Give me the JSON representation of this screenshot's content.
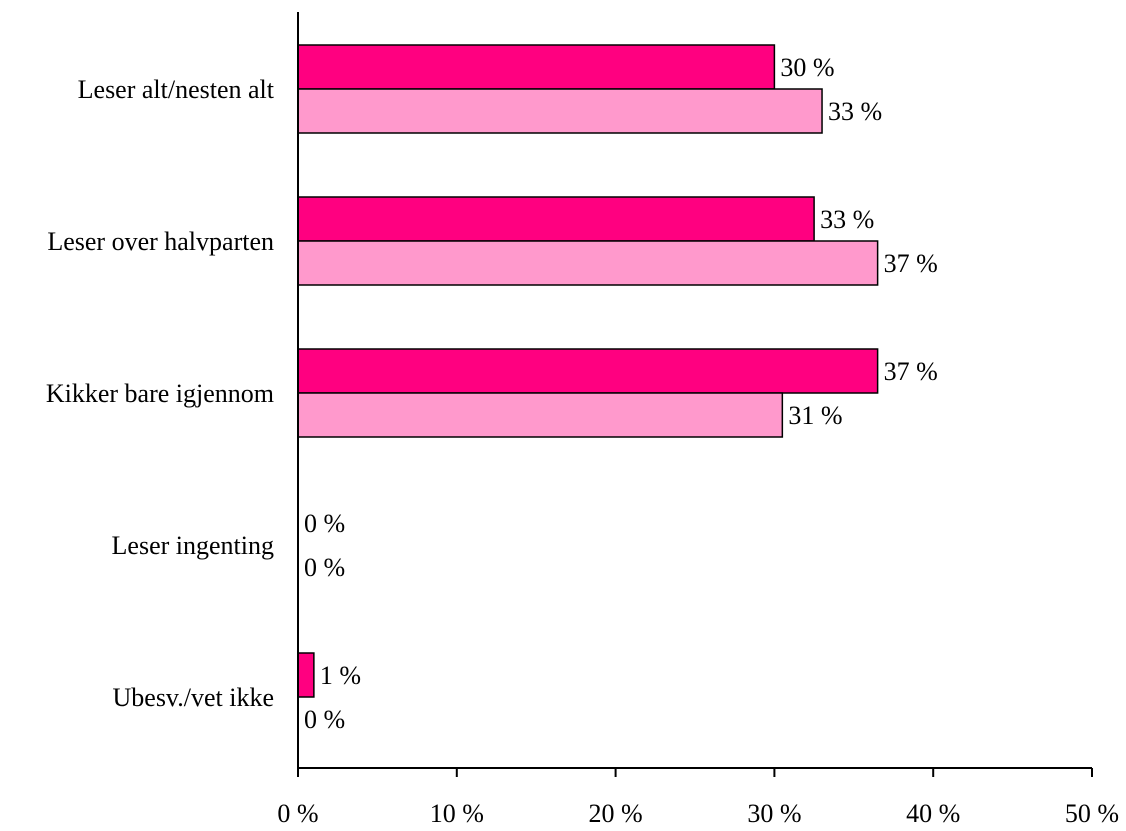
{
  "chart_data": {
    "type": "bar",
    "orientation": "horizontal",
    "categories": [
      "Leser alt/nesten alt",
      "Leser over halvparten",
      "Kikker bare igjennom",
      "Leser ingenting",
      "Ubesv./vet ikke"
    ],
    "series": [
      {
        "values": [
          30,
          32.5,
          36.5,
          0,
          1
        ],
        "labels": [
          "30 %",
          "33 %",
          "37 %",
          "0 %",
          "1 %"
        ],
        "color": "#ff0080"
      },
      {
        "values": [
          33,
          36.5,
          30.5,
          0,
          0
        ],
        "labels": [
          "33 %",
          "37 %",
          "31 %",
          "0 %",
          "0 %"
        ],
        "color": "#ff99cc"
      }
    ],
    "xlim": [
      0,
      50
    ],
    "xticks": [
      0,
      10,
      20,
      30,
      40,
      50
    ],
    "xtick_labels": [
      "0 %",
      "10 %",
      "20 %",
      "30 %",
      "40 %",
      "50 %"
    ],
    "title": "",
    "xlabel": "",
    "ylabel": "",
    "grid": false,
    "legend": "none"
  }
}
